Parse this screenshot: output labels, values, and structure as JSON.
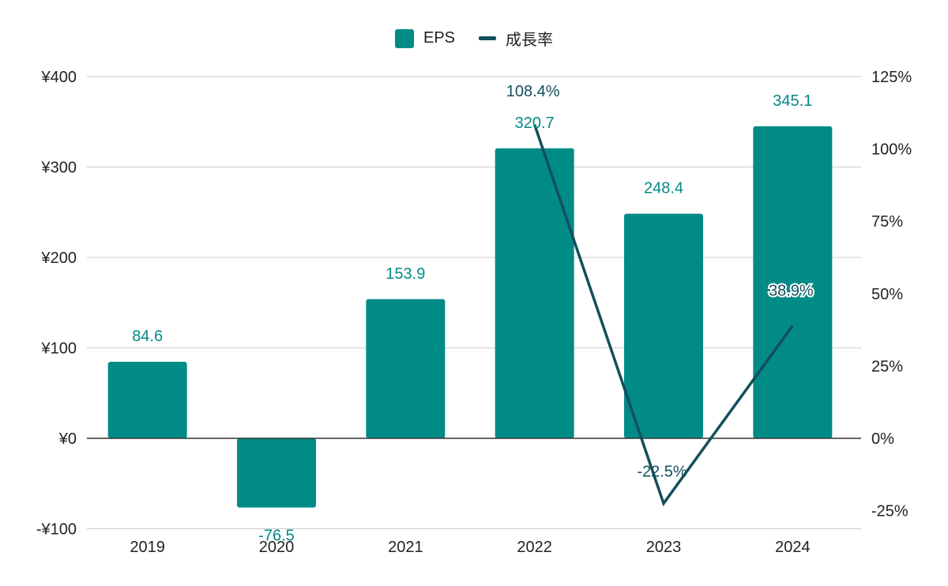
{
  "colors": {
    "bar": "#008B87",
    "line": "#134F5C",
    "grid": "#CCCCCC",
    "zero_axis": "#333333",
    "text": "#222222"
  },
  "legend": {
    "items": [
      {
        "label": "EPS",
        "swatch": "box",
        "color": "#008B87"
      },
      {
        "label": "成長率",
        "swatch": "line",
        "color": "#134F5C"
      }
    ]
  },
  "chart_data": {
    "type": "bar",
    "categories": [
      "2019",
      "2020",
      "2021",
      "2022",
      "2023",
      "2024"
    ],
    "series": [
      {
        "name": "EPS",
        "type": "bar",
        "axis": "left",
        "values": [
          84.6,
          -76.5,
          153.9,
          320.7,
          248.4,
          345.1
        ],
        "data_labels": [
          "84.6",
          "-76.5",
          "153.9",
          "320.7",
          "248.4",
          "345.1"
        ]
      },
      {
        "name": "成長率",
        "type": "line",
        "axis": "right",
        "values": [
          null,
          null,
          null,
          108.4,
          -22.5,
          38.9
        ],
        "data_labels": [
          null,
          null,
          null,
          "108.4%",
          "-22.5%",
          "38.9%"
        ]
      }
    ],
    "y_left": {
      "ylim": [
        -100,
        400
      ],
      "ticks": [
        -100,
        0,
        100,
        200,
        300,
        400
      ],
      "tick_labels": [
        "-¥100",
        "¥0",
        "¥100",
        "¥200",
        "¥300",
        "¥400"
      ]
    },
    "y_right": {
      "ylim": [
        -25,
        125
      ],
      "ticks": [
        -25,
        0,
        25,
        50,
        75,
        100,
        125
      ],
      "tick_labels": [
        "-25%",
        "0%",
        "25%",
        "50%",
        "75%",
        "100%",
        "125%"
      ]
    },
    "grid": true,
    "legend_position": "top-center",
    "title": "",
    "xlabel": "",
    "ylabel": ""
  }
}
